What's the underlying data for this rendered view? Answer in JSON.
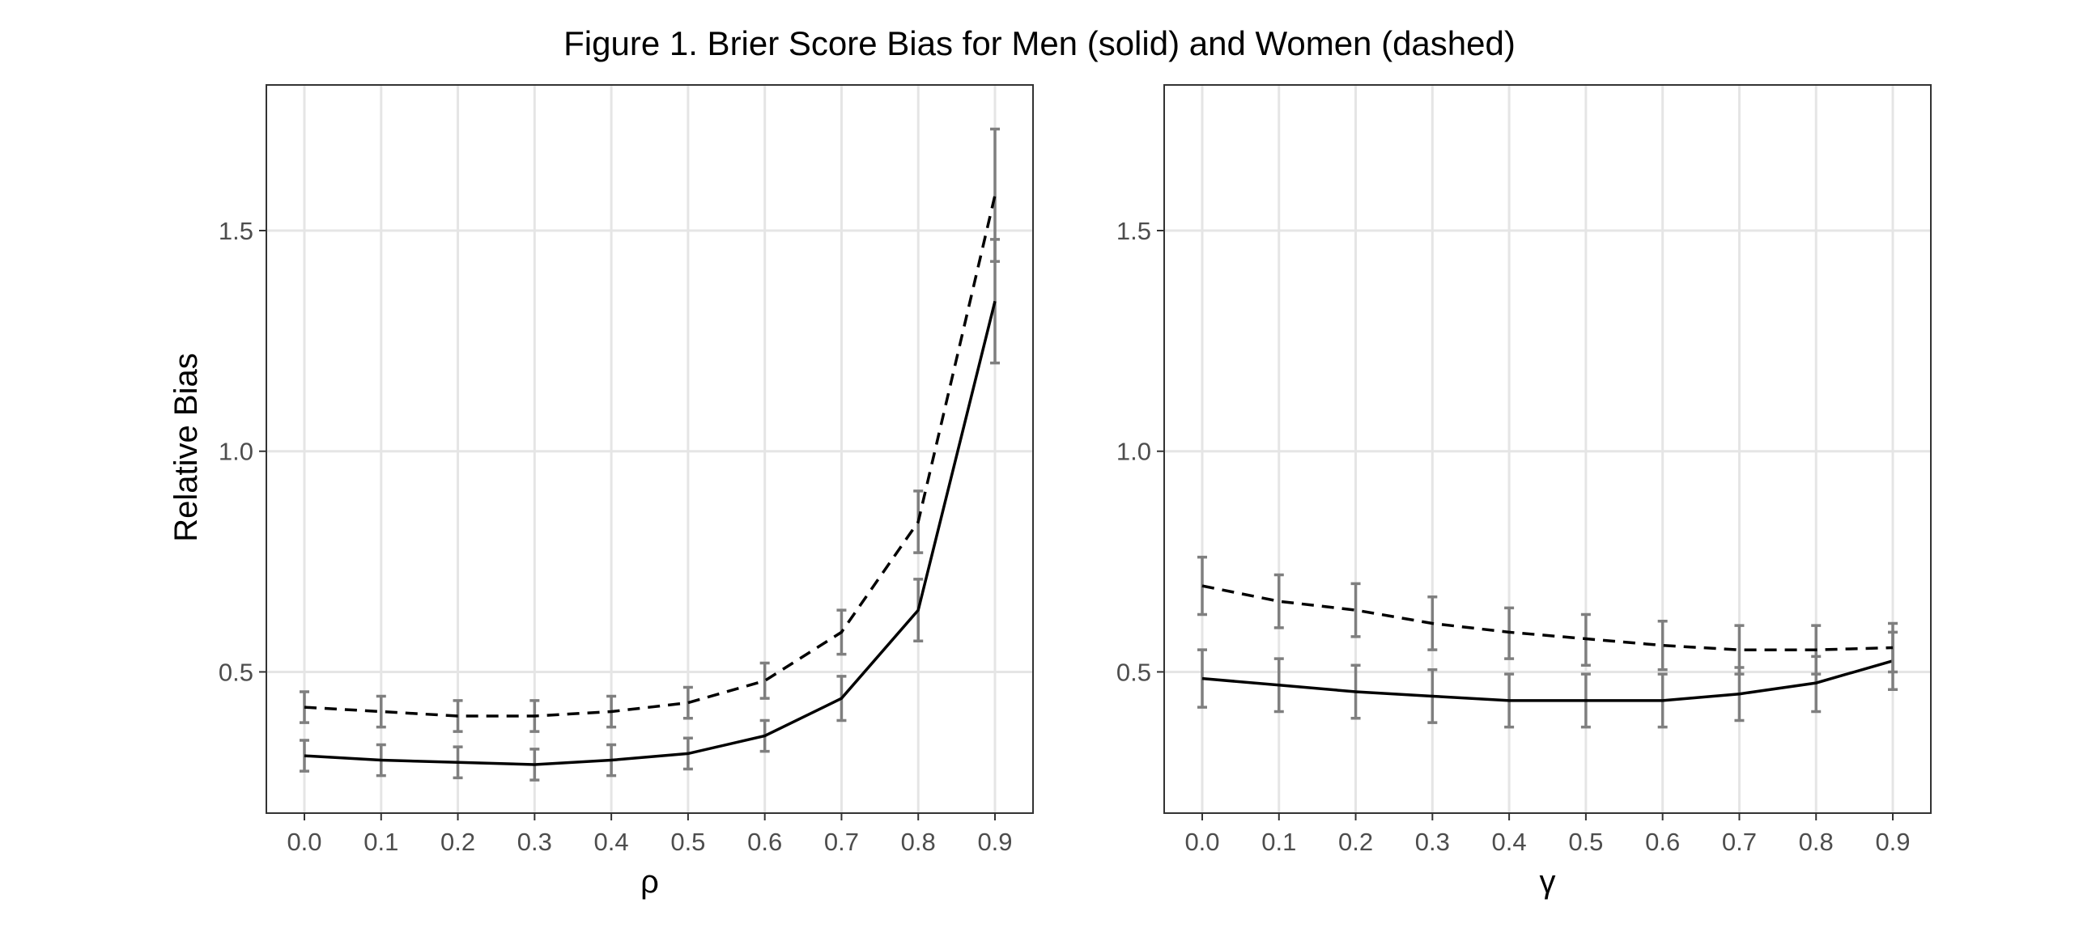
{
  "chart_data": {
    "type": "line",
    "title": "Figure 1. Brier Score Bias for Men (solid) and Women (dashed)",
    "ylabel": "Relative Bias",
    "ylim": [
      0.18,
      1.83
    ],
    "yticks": [
      0.5,
      1.0,
      1.5
    ],
    "ytick_labels": [
      "0.5",
      "1.0",
      "1.5"
    ],
    "grid": true,
    "panels": [
      {
        "xlabel": "ρ",
        "x": [
          0.0,
          0.1,
          0.2,
          0.3,
          0.4,
          0.5,
          0.6,
          0.7,
          0.8,
          0.9
        ],
        "xtick_labels": [
          "0.0",
          "0.1",
          "0.2",
          "0.3",
          "0.4",
          "0.5",
          "0.6",
          "0.7",
          "0.8",
          "0.9"
        ],
        "series": [
          {
            "style": "solid",
            "values": [
              0.31,
              0.3,
              0.295,
              0.29,
              0.3,
              0.315,
              0.355,
              0.44,
              0.64,
              1.34
            ],
            "lower": [
              0.275,
              0.265,
              0.26,
              0.255,
              0.265,
              0.28,
              0.32,
              0.39,
              0.57,
              1.2
            ],
            "upper": [
              0.345,
              0.335,
              0.33,
              0.325,
              0.335,
              0.35,
              0.39,
              0.49,
              0.71,
              1.48
            ]
          },
          {
            "style": "dashed",
            "values": [
              0.42,
              0.41,
              0.4,
              0.4,
              0.41,
              0.43,
              0.48,
              0.59,
              0.84,
              1.58
            ],
            "lower": [
              0.385,
              0.375,
              0.365,
              0.365,
              0.375,
              0.395,
              0.44,
              0.54,
              0.77,
              1.43
            ],
            "upper": [
              0.455,
              0.445,
              0.435,
              0.435,
              0.445,
              0.465,
              0.52,
              0.64,
              0.91,
              1.73
            ]
          }
        ]
      },
      {
        "xlabel": "γ",
        "x": [
          0.0,
          0.1,
          0.2,
          0.3,
          0.4,
          0.5,
          0.6,
          0.7,
          0.8,
          0.9
        ],
        "xtick_labels": [
          "0.0",
          "0.1",
          "0.2",
          "0.3",
          "0.4",
          "0.5",
          "0.6",
          "0.7",
          "0.8",
          "0.9"
        ],
        "series": [
          {
            "style": "solid",
            "values": [
              0.485,
              0.47,
              0.455,
              0.445,
              0.435,
              0.435,
              0.435,
              0.45,
              0.475,
              0.525
            ],
            "lower": [
              0.42,
              0.41,
              0.395,
              0.385,
              0.375,
              0.375,
              0.375,
              0.39,
              0.41,
              0.46
            ],
            "upper": [
              0.55,
              0.53,
              0.515,
              0.505,
              0.495,
              0.495,
              0.495,
              0.51,
              0.535,
              0.59
            ]
          },
          {
            "style": "dashed",
            "values": [
              0.695,
              0.66,
              0.64,
              0.61,
              0.59,
              0.575,
              0.56,
              0.55,
              0.55,
              0.555
            ],
            "lower": [
              0.63,
              0.6,
              0.58,
              0.55,
              0.53,
              0.515,
              0.505,
              0.495,
              0.495,
              0.5
            ],
            "upper": [
              0.76,
              0.72,
              0.7,
              0.67,
              0.645,
              0.63,
              0.615,
              0.605,
              0.605,
              0.61
            ]
          }
        ]
      }
    ]
  }
}
